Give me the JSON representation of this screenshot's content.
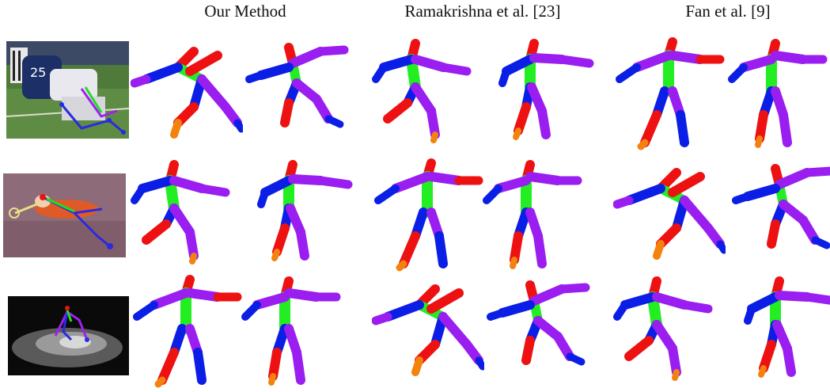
{
  "figure": {
    "column_headers": [
      "Our Method",
      "Ramakrishna et al. [23]",
      "Fan et al. [9]"
    ],
    "rows": [
      {
        "input_scene": "american-football-player",
        "reconstructions": 6
      },
      {
        "input_scene": "tennis-player-diving",
        "reconstructions": 6
      },
      {
        "input_scene": "dancer-on-dark-stage",
        "reconstructions": 6
      }
    ],
    "limb_colors": {
      "left_limb": "#0a1ee6",
      "right_limb": "#ee1111",
      "arm_limb": "#9a1ef0",
      "torso": "#22ee22",
      "foot": "#f4820e",
      "head": "#ee1111"
    }
  }
}
